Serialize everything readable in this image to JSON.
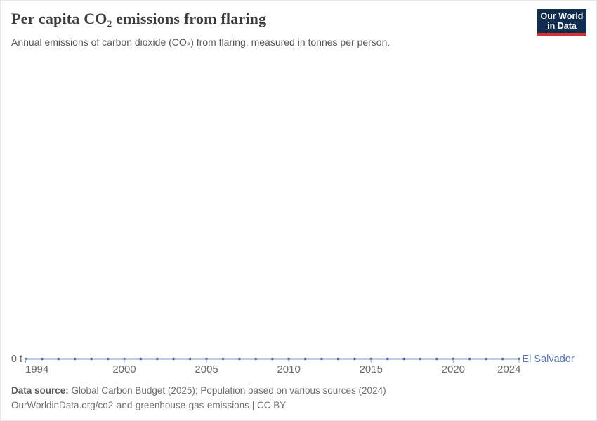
{
  "header": {
    "title": "Per capita CO₂ emissions from flaring",
    "subtitle": "Annual emissions of carbon dioxide (CO₂) from flaring, measured in tonnes per person.",
    "logo": {
      "line1": "Our World",
      "line2": "in Data"
    }
  },
  "chart": {
    "y_zero_label": "0 t",
    "entity_label": "El Salvador"
  },
  "chart_data": {
    "type": "line",
    "title": "Per capita CO₂ emissions from flaring",
    "xlabel": "",
    "ylabel": "tonnes per person",
    "x": [
      1994,
      1995,
      1996,
      1997,
      1998,
      1999,
      2000,
      2001,
      2002,
      2003,
      2004,
      2005,
      2006,
      2007,
      2008,
      2009,
      2010,
      2011,
      2012,
      2013,
      2014,
      2015,
      2016,
      2017,
      2018,
      2019,
      2020,
      2021,
      2022,
      2023,
      2024
    ],
    "series": [
      {
        "name": "El Salvador",
        "values": [
          0,
          0,
          0,
          0,
          0,
          0,
          0,
          0,
          0,
          0,
          0,
          0,
          0,
          0,
          0,
          0,
          0,
          0,
          0,
          0,
          0,
          0,
          0,
          0,
          0,
          0,
          0,
          0,
          0,
          0,
          0
        ]
      }
    ],
    "xticks": [
      1994,
      2000,
      2005,
      2010,
      2015,
      2020,
      2024
    ],
    "yticks": [
      "0 t"
    ],
    "ylim": [
      0,
      0
    ],
    "grid": false,
    "legend_position": "end-of-line"
  },
  "colors": {
    "line": "#577bb1",
    "marker": "#41639e",
    "tick": "#a4aebe",
    "entity_label": "#577bb1",
    "logo_bg": "#102d4f",
    "logo_accent": "#dc2f2f"
  },
  "footer": {
    "datasource_label": "Data source:",
    "datasource_value": "Global Carbon Budget (2025); Population based on various sources (2024)",
    "permalink": "OurWorldinData.org/co2-and-greenhouse-gas-emissions",
    "separator": "|",
    "license": "CC BY"
  }
}
